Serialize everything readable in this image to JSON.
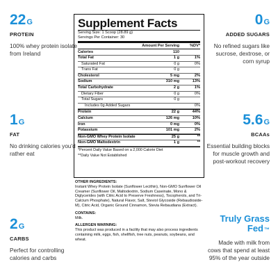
{
  "left": [
    {
      "big": "22",
      "unit": "G",
      "label": "PROTEIN",
      "desc": "100% whey protein isolate from Ireland"
    },
    {
      "big": "1",
      "unit": "G",
      "label": "FAT",
      "desc": "No drinking calories you'd rather eat"
    },
    {
      "big": "2",
      "unit": "G",
      "label": "CARBS",
      "desc": "Perfect for controlling calories and carbs"
    }
  ],
  "right": [
    {
      "big": "0",
      "unit": "G",
      "label": "ADDED SUGARS",
      "desc": "No refined sugars like sucrose, dextrose, or corn syrup"
    },
    {
      "big": "5.6",
      "unit": "G",
      "label": "BCAAs",
      "desc": "Essential building blocks for muscle growth and post-workout recovery"
    },
    {
      "big": "Truly Grass Fed",
      "unit": "™",
      "label": "",
      "desc": "Made with milk from cows that spend at least 95% of the year outside"
    }
  ],
  "facts": {
    "title": "Supplement Facts",
    "serving_size": "Serving Size: 1 Scoop (28.89 g)",
    "servings": "Servings Per Container: 30",
    "col_amount": "Amount Per Serving",
    "col_dv": "%DV*",
    "rows": [
      {
        "n": "Calories",
        "a": "110",
        "d": "",
        "b": true,
        "lvl": 0
      },
      {
        "n": "Total Fat",
        "a": "1 g",
        "d": "1%",
        "b": true,
        "lvl": 0
      },
      {
        "n": "Saturated Fat",
        "a": "0 g",
        "d": "0%",
        "b": false,
        "lvl": 1
      },
      {
        "n": "Trans Fat",
        "a": "0 g",
        "d": "",
        "b": false,
        "lvl": 1
      },
      {
        "n": "Cholesterol",
        "a": "5 mg",
        "d": "2%",
        "b": true,
        "lvl": 0
      },
      {
        "n": "Sodium",
        "a": "310 mg",
        "d": "13%",
        "b": true,
        "lvl": 0
      },
      {
        "n": "Total Carbohydrate",
        "a": "2 g",
        "d": "1%",
        "b": true,
        "lvl": 0
      },
      {
        "n": "Dietary Fiber",
        "a": "0 g",
        "d": "0%",
        "b": false,
        "lvl": 1
      },
      {
        "n": "Total Sugars",
        "a": "0 g",
        "d": "",
        "b": false,
        "lvl": 1
      },
      {
        "n": "Includes 0g Added Sugars",
        "a": "",
        "d": "0%",
        "b": false,
        "lvl": 2
      },
      {
        "n": "Protein",
        "a": "22 g",
        "d": "44%",
        "b": true,
        "lvl": 0
      },
      {
        "n": "Calcium",
        "a": "126 mg",
        "d": "10%",
        "b": true,
        "lvl": 0
      },
      {
        "n": "Iron",
        "a": "0 mg",
        "d": "0%",
        "b": true,
        "lvl": 0
      },
      {
        "n": "Potassium",
        "a": "101 mg",
        "d": "2%",
        "b": true,
        "lvl": 0
      },
      {
        "n": "Non-GMO Whey Protein Isolate",
        "a": "25 g",
        "d": "**",
        "b": true,
        "lvl": 0
      },
      {
        "n": "Non-GMO Maltodextrin",
        "a": "1 g",
        "d": "**",
        "b": true,
        "lvl": 0
      }
    ],
    "foot1": "*Percent Daily Value Based on a 2,000 Calorie Diet",
    "foot2": "**Daily Value Not Established"
  },
  "ingredients": {
    "other_h": "OTHER INGREDIENTS:",
    "other": "Instant Whey Protein Isolate (Sunflower Lecithin), Non-GMO Sunflower Oil Creamer (Sunflower Oil, Maltodextrin, Sodium Caseinate, Mono & Diglycerides (with Citric Acid to Preserve Freshness), Tocopherols, and Tri-Calcium Phosphate), Natural Flavor, Salt, Steviol Glycoside (Rebaudioside-M), Citric Acid, Organic Ground Cinnamon, Stevia Rebaudiana (Extract).",
    "contains_h": "CONTAINS:",
    "contains": "Milk.",
    "allergen_h": "ALLERGEN WARNING:",
    "allergen": "This product was produced in a facility that may also process ingredients containing milk, eggs, fish, shellfish, tree nuts, peanuts, soybeans, and wheat."
  }
}
